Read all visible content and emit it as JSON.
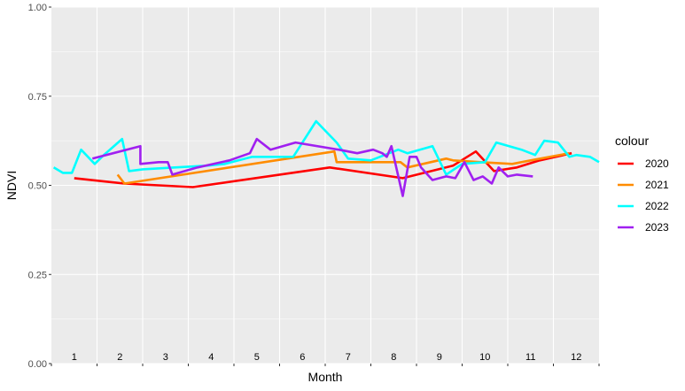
{
  "chart_data": {
    "type": "line",
    "xlabel": "Month",
    "ylabel": "NDVI",
    "ylim": [
      0,
      1
    ],
    "y_ticks": [
      "0.00",
      "0.25",
      "0.50",
      "0.75",
      "1.00"
    ],
    "y_tick_values": [
      0,
      0.25,
      0.5,
      0.75,
      1
    ],
    "xlim": [
      0.5,
      12.5
    ],
    "x_ticks": [
      "1",
      "2",
      "3",
      "4",
      "5",
      "6",
      "7",
      "8",
      "9",
      "10",
      "11",
      "12"
    ],
    "x_tick_values": [
      1,
      2,
      3,
      4,
      5,
      6,
      7,
      8,
      9,
      10,
      11,
      12
    ],
    "x_tick_labels_inside_panel": true,
    "grid": true,
    "panel_background": "#ebebeb",
    "legend": {
      "title": "colour",
      "position": "right"
    },
    "series": [
      {
        "name": "2020",
        "color": "#ff0000",
        "x": [
          1.0,
          2.1,
          3.6,
          6.6,
          8.2,
          9.3,
          9.8,
          10.2,
          10.7,
          11.2,
          11.9
        ],
        "y": [
          0.52,
          0.505,
          0.495,
          0.55,
          0.52,
          0.555,
          0.595,
          0.54,
          0.55,
          0.57,
          0.59
        ]
      },
      {
        "name": "2021",
        "color": "#ff8c00",
        "x": [
          1.95,
          2.1,
          6.7,
          6.75,
          8.15,
          8.3,
          9.15,
          9.3,
          9.9,
          10.6,
          11.0,
          11.85
        ],
        "y": [
          0.53,
          0.505,
          0.595,
          0.565,
          0.565,
          0.55,
          0.575,
          0.57,
          0.565,
          0.56,
          0.57,
          0.59
        ]
      },
      {
        "name": "2022",
        "color": "#00ffff",
        "x": [
          0.55,
          0.75,
          0.95,
          1.15,
          1.45,
          1.65,
          2.05,
          2.2,
          2.5,
          3.2,
          3.9,
          4.3,
          4.9,
          5.5,
          5.8,
          6.3,
          6.75,
          7.0,
          7.5,
          8.1,
          8.3,
          8.85,
          9.15,
          9.5,
          10.0,
          10.25,
          10.8,
          11.1,
          11.3,
          11.6,
          11.85,
          12.0,
          12.3,
          12.5
        ],
        "y": [
          0.55,
          0.535,
          0.535,
          0.6,
          0.56,
          0.585,
          0.63,
          0.54,
          0.545,
          0.55,
          0.555,
          0.56,
          0.58,
          0.58,
          0.58,
          0.68,
          0.62,
          0.575,
          0.57,
          0.6,
          0.59,
          0.61,
          0.53,
          0.56,
          0.565,
          0.62,
          0.6,
          0.585,
          0.625,
          0.62,
          0.58,
          0.585,
          0.58,
          0.565
        ]
      },
      {
        "name": "2023",
        "color": "#a020f0",
        "x": [
          1.4,
          2.45,
          2.45,
          2.85,
          3.05,
          3.15,
          3.7,
          4.4,
          4.85,
          5.0,
          5.3,
          5.85,
          6.8,
          7.2,
          7.55,
          7.75,
          7.85,
          7.95,
          8.2,
          8.35,
          8.5,
          8.6,
          8.85,
          9.15,
          9.35,
          9.55,
          9.75,
          9.95,
          10.15,
          10.3,
          10.5,
          10.7,
          11.05
        ],
        "y": [
          0.575,
          0.61,
          0.56,
          0.565,
          0.565,
          0.53,
          0.55,
          0.57,
          0.59,
          0.63,
          0.6,
          0.62,
          0.6,
          0.59,
          0.6,
          0.59,
          0.58,
          0.61,
          0.47,
          0.58,
          0.58,
          0.55,
          0.515,
          0.525,
          0.52,
          0.565,
          0.515,
          0.525,
          0.505,
          0.55,
          0.525,
          0.53,
          0.525
        ]
      }
    ]
  }
}
